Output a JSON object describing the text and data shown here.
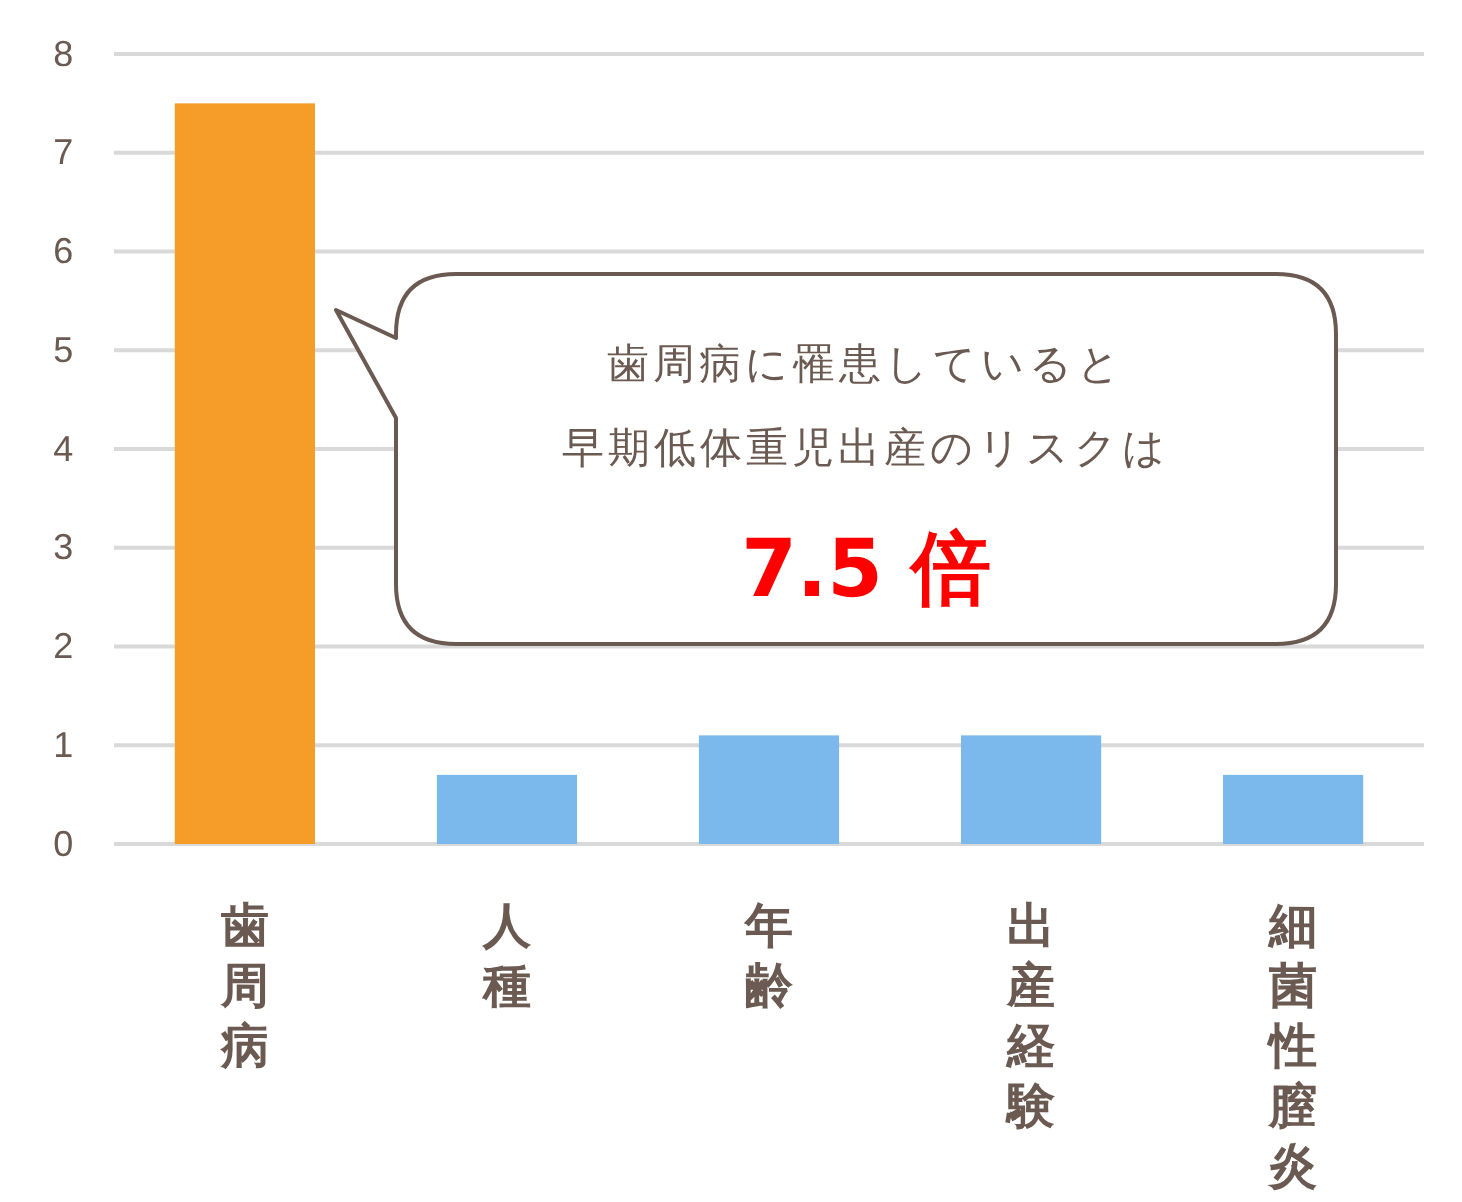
{
  "chart_data": {
    "type": "bar",
    "categories": [
      "歯周病",
      "人種",
      "年齢",
      "出産経験",
      "細菌性膣炎"
    ],
    "values": [
      7.5,
      0.7,
      1.1,
      1.1,
      0.7
    ],
    "colors": [
      "#f59d28",
      "#7bb8eb",
      "#7bb8eb",
      "#7bb8eb",
      "#7bb8eb"
    ],
    "ylim": [
      0,
      8
    ],
    "yticks": [
      0,
      1,
      2,
      3,
      4,
      5,
      6,
      7,
      8
    ],
    "grid": "y",
    "annotations": [
      "歯周病に罹患していると",
      "早期低体重児出産のリスクは",
      "7.5 倍"
    ]
  }
}
